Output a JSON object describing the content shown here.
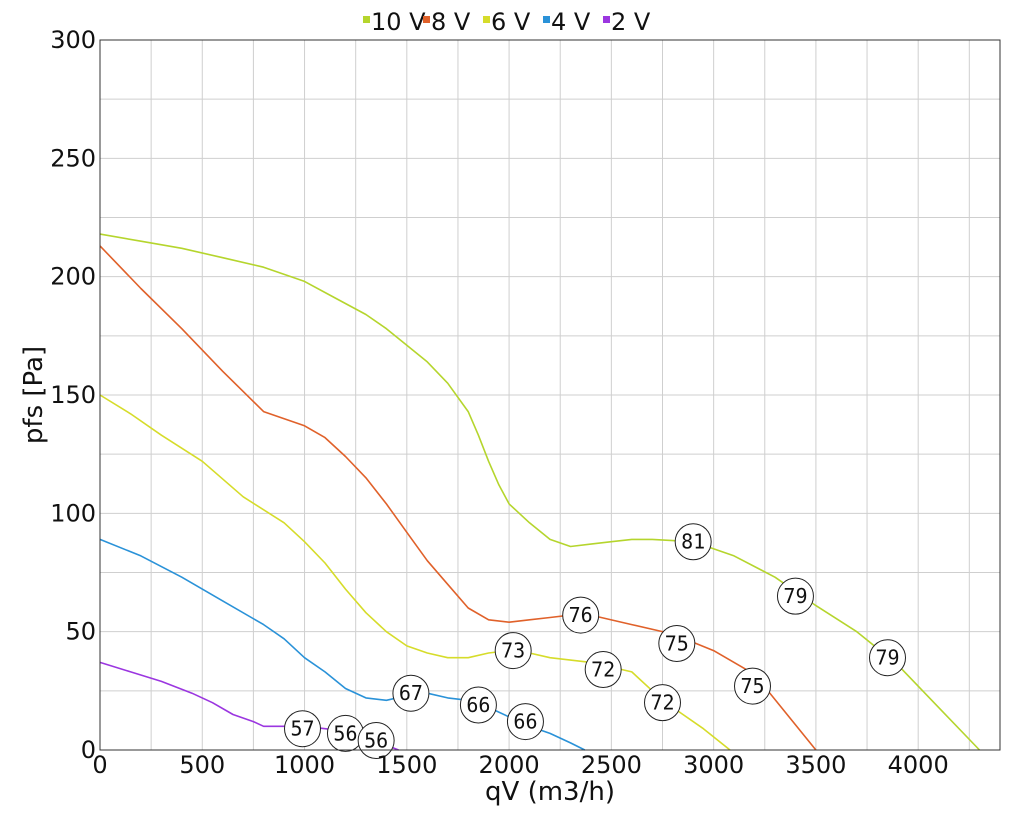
{
  "chart_data": {
    "type": "line",
    "xlabel": "qV (m3/h)",
    "ylabel": "pfs [Pa]",
    "xlim": [
      0,
      4400
    ],
    "ylim": [
      0,
      300
    ],
    "xticks": [
      0,
      500,
      1000,
      1500,
      2000,
      2500,
      3000,
      3500,
      4000
    ],
    "yticks": [
      0,
      50,
      100,
      150,
      200,
      250,
      300
    ],
    "grid": true,
    "legend_position": "top-center",
    "series": [
      {
        "name": "10 V",
        "color": "#b5d52d",
        "points": [
          [
            0,
            218
          ],
          [
            200,
            215
          ],
          [
            400,
            212
          ],
          [
            600,
            208
          ],
          [
            800,
            204
          ],
          [
            1000,
            198
          ],
          [
            1150,
            191
          ],
          [
            1300,
            184
          ],
          [
            1400,
            178
          ],
          [
            1500,
            171
          ],
          [
            1600,
            164
          ],
          [
            1700,
            155
          ],
          [
            1800,
            143
          ],
          [
            1850,
            133
          ],
          [
            1900,
            122
          ],
          [
            1950,
            112
          ],
          [
            2000,
            104
          ],
          [
            2100,
            96
          ],
          [
            2200,
            89
          ],
          [
            2300,
            86
          ],
          [
            2400,
            87
          ],
          [
            2500,
            88
          ],
          [
            2600,
            89
          ],
          [
            2700,
            89
          ],
          [
            2900,
            88
          ],
          [
            3100,
            82
          ],
          [
            3300,
            73
          ],
          [
            3500,
            61
          ],
          [
            3700,
            50
          ],
          [
            3900,
            36
          ],
          [
            4100,
            18
          ],
          [
            4300,
            0
          ]
        ]
      },
      {
        "name": "8 V",
        "color": "#e0612a",
        "points": [
          [
            0,
            213
          ],
          [
            200,
            195
          ],
          [
            400,
            178
          ],
          [
            600,
            160
          ],
          [
            800,
            143
          ],
          [
            1000,
            137
          ],
          [
            1100,
            132
          ],
          [
            1200,
            124
          ],
          [
            1300,
            115
          ],
          [
            1400,
            104
          ],
          [
            1500,
            92
          ],
          [
            1600,
            80
          ],
          [
            1700,
            70
          ],
          [
            1800,
            60
          ],
          [
            1900,
            55
          ],
          [
            2000,
            54
          ],
          [
            2100,
            55
          ],
          [
            2200,
            56
          ],
          [
            2300,
            57
          ],
          [
            2400,
            57
          ],
          [
            2600,
            53
          ],
          [
            2800,
            49
          ],
          [
            3000,
            42
          ],
          [
            3200,
            32
          ],
          [
            3350,
            16
          ],
          [
            3500,
            0
          ]
        ]
      },
      {
        "name": "6 V",
        "color": "#d6dc2a",
        "points": [
          [
            0,
            150
          ],
          [
            150,
            142
          ],
          [
            300,
            133
          ],
          [
            500,
            122
          ],
          [
            700,
            107
          ],
          [
            900,
            96
          ],
          [
            1000,
            88
          ],
          [
            1100,
            79
          ],
          [
            1200,
            68
          ],
          [
            1300,
            58
          ],
          [
            1400,
            50
          ],
          [
            1500,
            44
          ],
          [
            1600,
            41
          ],
          [
            1700,
            39
          ],
          [
            1800,
            39
          ],
          [
            1900,
            41
          ],
          [
            2000,
            42
          ],
          [
            2100,
            41
          ],
          [
            2200,
            39
          ],
          [
            2400,
            37
          ],
          [
            2600,
            33
          ],
          [
            2700,
            25
          ],
          [
            2800,
            18
          ],
          [
            2950,
            9
          ],
          [
            3080,
            0
          ]
        ]
      },
      {
        "name": "4 V",
        "color": "#2a92d8",
        "points": [
          [
            0,
            89
          ],
          [
            200,
            82
          ],
          [
            400,
            73
          ],
          [
            600,
            63
          ],
          [
            800,
            53
          ],
          [
            900,
            47
          ],
          [
            1000,
            39
          ],
          [
            1100,
            33
          ],
          [
            1200,
            26
          ],
          [
            1300,
            22
          ],
          [
            1400,
            21
          ],
          [
            1500,
            23
          ],
          [
            1600,
            24
          ],
          [
            1700,
            22
          ],
          [
            1800,
            21
          ],
          [
            1900,
            18
          ],
          [
            2000,
            14
          ],
          [
            2100,
            10
          ],
          [
            2200,
            7
          ],
          [
            2300,
            3
          ],
          [
            2370,
            0
          ]
        ]
      },
      {
        "name": "2 V",
        "color": "#9b36e0",
        "points": [
          [
            0,
            37
          ],
          [
            150,
            33
          ],
          [
            300,
            29
          ],
          [
            450,
            24
          ],
          [
            550,
            20
          ],
          [
            650,
            15
          ],
          [
            750,
            12
          ],
          [
            800,
            10
          ],
          [
            900,
            10
          ],
          [
            1000,
            10
          ],
          [
            1100,
            9
          ],
          [
            1200,
            8
          ],
          [
            1300,
            6
          ],
          [
            1400,
            2
          ],
          [
            1460,
            0
          ]
        ]
      }
    ],
    "annotations": [
      {
        "label": "81",
        "x": 2900,
        "y": 88
      },
      {
        "label": "79",
        "x": 3400,
        "y": 65
      },
      {
        "label": "79",
        "x": 3850,
        "y": 39
      },
      {
        "label": "76",
        "x": 2350,
        "y": 57
      },
      {
        "label": "75",
        "x": 2820,
        "y": 45
      },
      {
        "label": "75",
        "x": 3190,
        "y": 27
      },
      {
        "label": "73",
        "x": 2020,
        "y": 42
      },
      {
        "label": "72",
        "x": 2460,
        "y": 34
      },
      {
        "label": "72",
        "x": 2750,
        "y": 20
      },
      {
        "label": "67",
        "x": 1520,
        "y": 24
      },
      {
        "label": "66",
        "x": 1850,
        "y": 19
      },
      {
        "label": "66",
        "x": 2080,
        "y": 12
      },
      {
        "label": "57",
        "x": 990,
        "y": 9
      },
      {
        "label": "56",
        "x": 1200,
        "y": 7
      },
      {
        "label": "56",
        "x": 1350,
        "y": 4
      }
    ]
  }
}
